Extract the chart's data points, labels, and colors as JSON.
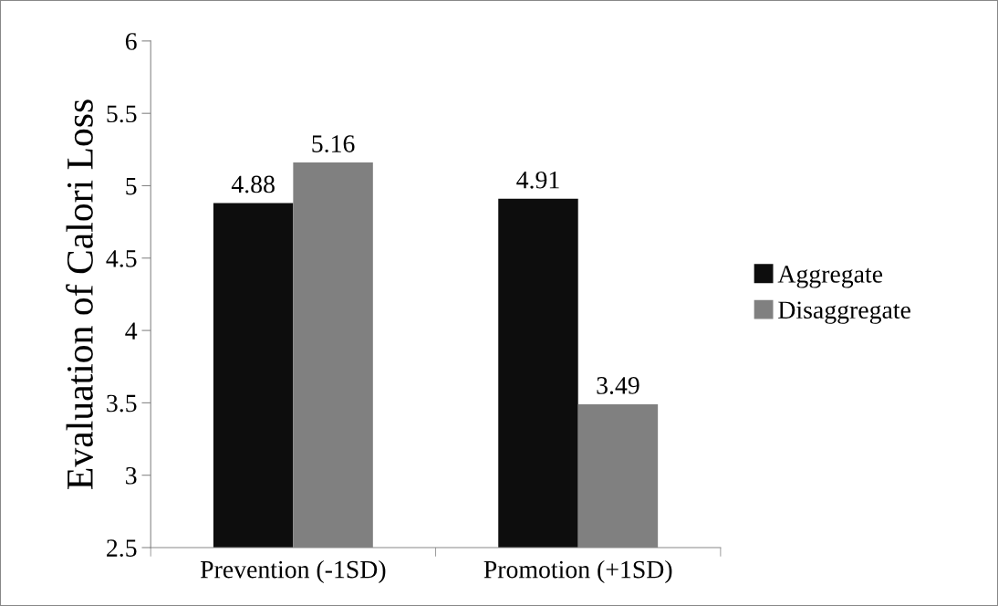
{
  "chart_data": {
    "type": "bar",
    "ylabel": "Evaluation of Calori Loss",
    "categories": [
      "Prevention (-1SD)",
      "Promotion (+1SD)"
    ],
    "series": [
      {
        "name": "Aggregate",
        "color": "#0d0d0d",
        "values": [
          4.88,
          4.91
        ]
      },
      {
        "name": "Disaggregate",
        "color": "#808080",
        "values": [
          5.16,
          3.49
        ]
      }
    ],
    "ylim": [
      2.5,
      6
    ],
    "yticks": [
      2.5,
      3,
      3.5,
      4,
      4.5,
      5,
      5.5,
      6
    ],
    "grid": false,
    "legend": "right",
    "data_labels": true
  }
}
